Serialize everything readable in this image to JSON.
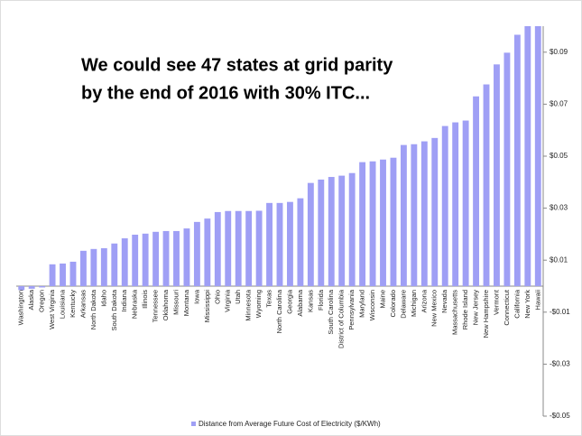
{
  "chart_data": {
    "type": "bar",
    "title": [
      "We could see 47 states at grid parity",
      "by the end of 2016 with 30% ITC..."
    ],
    "categories": [
      "Washington",
      "Alaska",
      "Oregon",
      "West Virginia",
      "Louisiana",
      "Kentucky",
      "Arkansas",
      "North Dakota",
      "Idaho",
      "South Dakota",
      "Indiana",
      "Nebraska",
      "Illinois",
      "Tennessee",
      "Oklahoma",
      "Missouri",
      "Montana",
      "Iowa",
      "Mississippi",
      "Ohio",
      "Virginia",
      "Utah",
      "Minnesota",
      "Wyoming",
      "Texas",
      "North Carolina",
      "Georgia",
      "Alabama",
      "Kansas",
      "Florida",
      "South Carolina",
      "District of Columbia",
      "Pennsylvania",
      "Maryland",
      "Wisconsin",
      "Maine",
      "Colorado",
      "Delaware",
      "Michigan",
      "Arizona",
      "New Mexico",
      "Nevada",
      "Massachusetts",
      "Rhode Island",
      "New Jersey",
      "New Hampshire",
      "Vermont",
      "Connecticut",
      "California",
      "New York",
      "Hawaii"
    ],
    "series": [
      {
        "name": "Distance from Average Future Cost of Electricity  ($/KWh)",
        "color": "#9f9ff5",
        "values": [
          -0.0015,
          -0.001,
          -0.0005,
          0.0084,
          0.0087,
          0.0094,
          0.0136,
          0.0143,
          0.0146,
          0.0164,
          0.0184,
          0.0198,
          0.0202,
          0.0209,
          0.0212,
          0.0212,
          0.0222,
          0.0247,
          0.026,
          0.0285,
          0.0289,
          0.0289,
          0.0289,
          0.029,
          0.032,
          0.032,
          0.0324,
          0.0338,
          0.0397,
          0.041,
          0.042,
          0.0425,
          0.0435,
          0.0477,
          0.048,
          0.0487,
          0.0494,
          0.0543,
          0.0546,
          0.0557,
          0.057,
          0.0616,
          0.063,
          0.0637,
          0.073,
          0.0776,
          0.0853,
          0.0898,
          0.0967,
          0.1,
          0.1
        ]
      }
    ],
    "ylim": [
      -0.05,
      0.1
    ],
    "yticks": [
      {
        "value": -0.05,
        "label": "-$0.05"
      },
      {
        "value": -0.03,
        "label": "-$0.03"
      },
      {
        "value": -0.01,
        "label": "-$0.01"
      },
      {
        "value": 0.01,
        "label": "$0.01"
      },
      {
        "value": 0.03,
        "label": "$0.03"
      },
      {
        "value": 0.05,
        "label": "$0.05"
      },
      {
        "value": 0.07,
        "label": "$0.07"
      },
      {
        "value": 0.09,
        "label": "$0.09"
      }
    ],
    "y_axis_side": "right",
    "grid": false,
    "legend": "bottom"
  }
}
